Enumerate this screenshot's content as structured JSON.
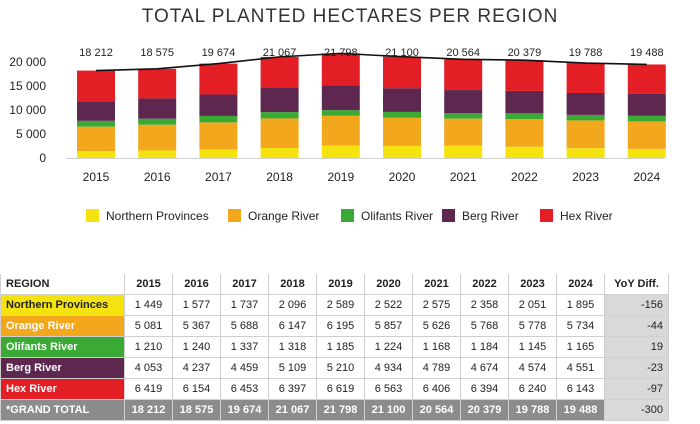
{
  "title": "TOTAL PLANTED HECTARES PER REGION",
  "colors": {
    "northern_provinces": "#f5e30f",
    "orange_river": "#f2a71c",
    "olifants_river": "#3aaa35",
    "berg_river": "#5e2750",
    "hex_river": "#e31e24",
    "total_line": "#111111"
  },
  "chart_data": {
    "type": "bar",
    "stacked": true,
    "title": "TOTAL PLANTED HECTARES PER REGION",
    "categories": [
      "2015",
      "2016",
      "2017",
      "2018",
      "2019",
      "2020",
      "2021",
      "2022",
      "2023",
      "2024"
    ],
    "series": [
      {
        "name": "Northern Provinces",
        "values": [
          1449,
          1577,
          1737,
          2096,
          2589,
          2522,
          2575,
          2358,
          2051,
          1895
        ]
      },
      {
        "name": "Orange River",
        "values": [
          5081,
          5367,
          5688,
          6147,
          6195,
          5857,
          5626,
          5768,
          5778,
          5734
        ]
      },
      {
        "name": "Olifants River",
        "values": [
          1210,
          1240,
          1337,
          1318,
          1185,
          1224,
          1168,
          1184,
          1145,
          1165
        ]
      },
      {
        "name": "Berg River",
        "values": [
          4053,
          4237,
          4459,
          5109,
          5210,
          4934,
          4789,
          4674,
          4574,
          4551
        ]
      },
      {
        "name": "Hex River",
        "values": [
          6419,
          6154,
          6453,
          6397,
          6619,
          6563,
          6406,
          6394,
          6240,
          6143
        ]
      }
    ],
    "totals": [
      18212,
      18575,
      19674,
      21067,
      21798,
      21100,
      20564,
      20379,
      19788,
      19488
    ],
    "total_labels": [
      "18 212",
      "18 575",
      "19 674",
      "21 067",
      "21 798",
      "21 100",
      "20 564",
      "20 379",
      "19 788",
      "19 488"
    ],
    "yticks": [
      0,
      5000,
      10000,
      15000,
      20000
    ],
    "ytick_labels": [
      "0",
      "5 000",
      "10 000",
      "15 000",
      "20 000"
    ],
    "ylim": [
      0,
      22500
    ],
    "xlabel": "",
    "ylabel": "",
    "legend_position": "bottom"
  },
  "table": {
    "headers": [
      "REGION",
      "2015",
      "2016",
      "2017",
      "2018",
      "2019",
      "2020",
      "2021",
      "2022",
      "2023",
      "2024",
      "YoY Diff."
    ],
    "rows": [
      {
        "region": "Northern Provinces",
        "values": [
          "1 449",
          "1 577",
          "1 737",
          "2 096",
          "2 589",
          "2 522",
          "2 575",
          "2 358",
          "2 051",
          "1 895"
        ],
        "yoy": "-156"
      },
      {
        "region": "Orange River",
        "values": [
          "5 081",
          "5 367",
          "5 688",
          "6 147",
          "6 195",
          "5 857",
          "5 626",
          "5 768",
          "5 778",
          "5 734"
        ],
        "yoy": "-44"
      },
      {
        "region": "Olifants River",
        "values": [
          "1 210",
          "1 240",
          "1 337",
          "1 318",
          "1 185",
          "1 224",
          "1 168",
          "1 184",
          "1 145",
          "1 165"
        ],
        "yoy": "19"
      },
      {
        "region": "Berg River",
        "values": [
          "4 053",
          "4 237",
          "4 459",
          "5 109",
          "5 210",
          "4 934",
          "4 789",
          "4 674",
          "4 574",
          "4 551"
        ],
        "yoy": "-23"
      },
      {
        "region": "Hex River",
        "values": [
          "6 419",
          "6 154",
          "6 453",
          "6 397",
          "6 619",
          "6 563",
          "6 406",
          "6 394",
          "6 240",
          "6 143"
        ],
        "yoy": "-97"
      }
    ],
    "grand_total": {
      "label": "*GRAND TOTAL",
      "values": [
        "18 212",
        "18 575",
        "19 674",
        "21 067",
        "21 798",
        "21 100",
        "20 564",
        "20 379",
        "19 788",
        "19 488"
      ],
      "yoy": "-300"
    }
  }
}
